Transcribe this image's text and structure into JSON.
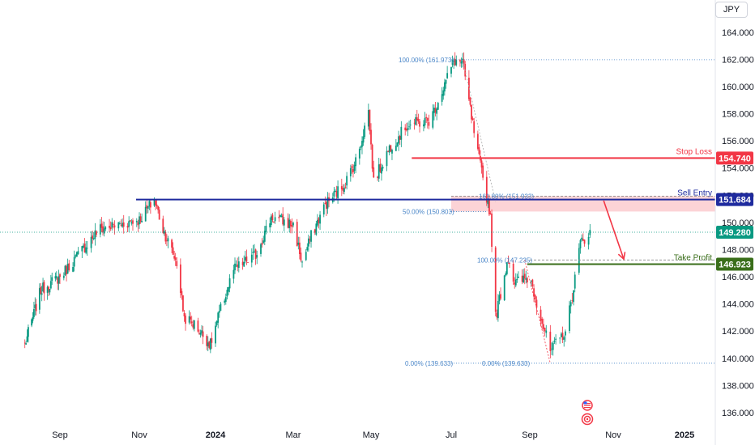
{
  "currency_button": "JPY",
  "chart_data": {
    "type": "candlestick",
    "y_axis": {
      "ticks": [
        "164.000",
        "162.000",
        "160.000",
        "158.000",
        "156.000",
        "154.000",
        "152.000",
        "150.000",
        "148.000",
        "146.000",
        "144.000",
        "142.000",
        "140.000",
        "138.000",
        "136.000"
      ],
      "ylim": [
        135.4,
        165.6
      ]
    },
    "x_axis": {
      "ticks": [
        "Sep",
        "Nov",
        "2024",
        "Mar",
        "May",
        "Jul",
        "Sep",
        "Nov",
        "2025"
      ]
    },
    "price_path": {
      "dates": [
        "2023-08-01",
        "2023-08-15",
        "2023-09-01",
        "2023-09-15",
        "2023-10-01",
        "2023-10-15",
        "2023-11-01",
        "2023-11-13",
        "2023-11-20",
        "2023-12-01",
        "2023-12-07",
        "2023-12-15",
        "2023-12-28",
        "2024-01-03",
        "2024-01-15",
        "2024-02-01",
        "2024-02-13",
        "2024-03-01",
        "2024-03-08",
        "2024-03-15",
        "2024-03-26",
        "2024-04-10",
        "2024-04-20",
        "2024-04-29",
        "2024-05-03",
        "2024-05-15",
        "2024-05-29",
        "2024-06-15",
        "2024-07-03",
        "2024-07-10",
        "2024-07-20",
        "2024-08-01",
        "2024-08-05",
        "2024-08-15",
        "2024-08-20",
        "2024-09-01",
        "2024-09-16",
        "2024-09-27",
        "2024-10-01",
        "2024-10-08",
        "2024-10-15"
      ],
      "closes": [
        141.0,
        145.0,
        146.0,
        147.6,
        149.5,
        149.8,
        150.2,
        151.7,
        149.5,
        147.0,
        143.0,
        142.5,
        141.0,
        143.0,
        146.5,
        147.6,
        150.4,
        149.8,
        147.0,
        149.0,
        151.3,
        152.8,
        154.7,
        158.2,
        153.0,
        155.5,
        157.2,
        157.5,
        161.9,
        161.8,
        156.0,
        150.5,
        143.0,
        147.5,
        145.5,
        146.0,
        140.5,
        142.0,
        144.0,
        148.5,
        149.3
      ]
    },
    "current_price": 149.28,
    "levels": [
      {
        "name": "Stop Loss",
        "price": 154.74,
        "price_label": "154.740",
        "color": "#f23645"
      },
      {
        "name": "Sell Entry",
        "price": 151.684,
        "price_label": "151.684",
        "color": "#1e2a9e"
      },
      {
        "name": "Take Profit",
        "price": 146.923,
        "price_label": "146.923",
        "color": "#3a6e1a"
      }
    ],
    "current_price_label": "149.280",
    "sell_zone": {
      "from": 150.803,
      "to": 151.933
    },
    "fib_labels": [
      {
        "text": "100.00% (161.973)",
        "price": 161.973
      },
      {
        "text": "161.80% (151.933)",
        "price": 151.933
      },
      {
        "text": "50.00% (150.803)",
        "price": 150.803
      },
      {
        "text": "100.00% (147.235)",
        "price": 147.235
      },
      {
        "text": "0.00% (139.633)",
        "price": 139.633
      },
      {
        "text": "0.00% (139.633)",
        "price": 139.633
      }
    ],
    "arrow": {
      "from_date": "2024-10-25",
      "from_price": 151.6,
      "to_date": "2024-11-10",
      "to_price": 147.3
    }
  }
}
